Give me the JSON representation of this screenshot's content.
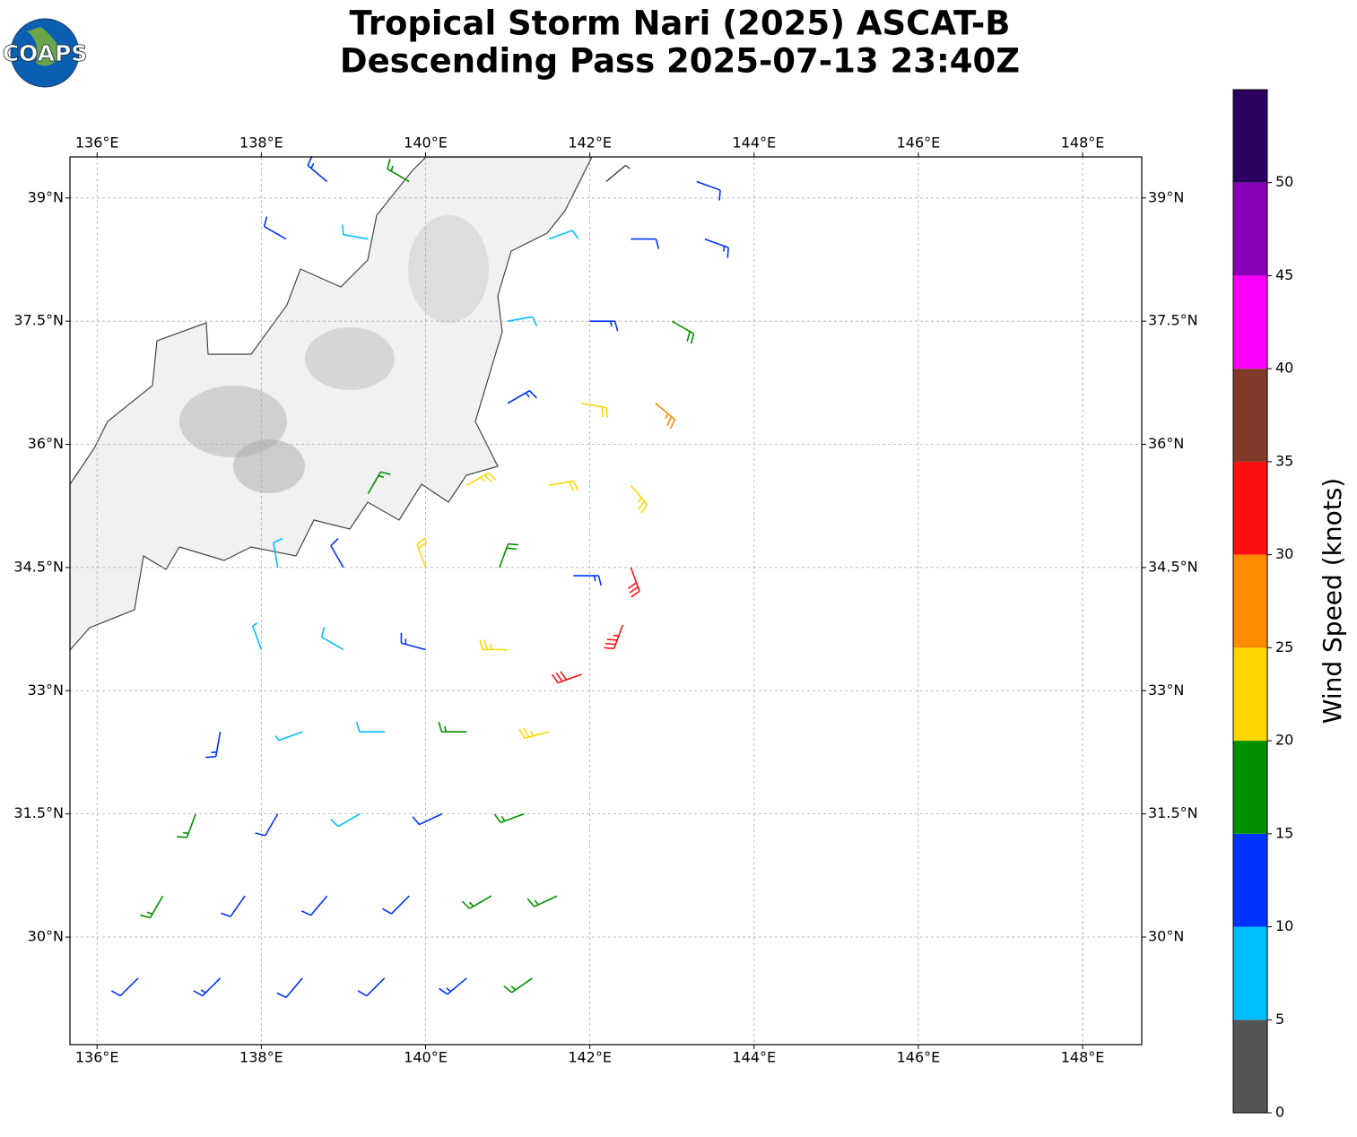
{
  "header": {
    "title": [
      "Tropical Storm Nari (2025) ASCAT-B",
      "Descending Pass 2025-07-13 23:40Z"
    ],
    "logo": "COAPS"
  },
  "chart_data": {
    "type": "barbs",
    "xlim": [
      135.67,
      148.72
    ],
    "ylim": [
      28.69,
      39.5
    ],
    "grid": true,
    "xticks": [
      {
        "value": 136,
        "label": "136°E"
      },
      {
        "value": 138,
        "label": "138°E"
      },
      {
        "value": 140,
        "label": "140°E"
      },
      {
        "value": 142,
        "label": "142°E"
      },
      {
        "value": 144,
        "label": "144°E"
      },
      {
        "value": 146,
        "label": "146°E"
      },
      {
        "value": 148,
        "label": "148°E"
      }
    ],
    "yticks": [
      {
        "value": 30,
        "label": "30°N"
      },
      {
        "value": 31.5,
        "label": "31.5°N"
      },
      {
        "value": 33,
        "label": "33°N"
      },
      {
        "value": 34.5,
        "label": "34.5°N"
      },
      {
        "value": 36,
        "label": "36°N"
      },
      {
        "value": 37.5,
        "label": "37.5°N"
      },
      {
        "value": 39,
        "label": "39°N"
      }
    ],
    "x": [
      136.5,
      137.5,
      138.5,
      139.5,
      140.5,
      141.3,
      136.8,
      137.8,
      138.8,
      139.8,
      140.8,
      141.6,
      137.2,
      138.2,
      139.2,
      140.2,
      141.2,
      137.5,
      138.5,
      139.5,
      140.5,
      141.5,
      138.0,
      139.0,
      140.0,
      141.0,
      141.9,
      142.4,
      138.2,
      139.0,
      140.0,
      140.9,
      141.8,
      142.5,
      139.3,
      140.5,
      141.5,
      142.5,
      141.0,
      141.9,
      142.8,
      141.0,
      142.0,
      143.0,
      138.3,
      139.3,
      141.5,
      142.5,
      143.4,
      138.8,
      139.8,
      142.2,
      143.3
    ],
    "y": [
      29.5,
      29.5,
      29.5,
      29.5,
      29.5,
      29.5,
      30.5,
      30.5,
      30.5,
      30.5,
      30.5,
      30.5,
      31.5,
      31.5,
      31.5,
      31.5,
      31.5,
      32.5,
      32.5,
      32.5,
      32.5,
      32.5,
      33.5,
      33.5,
      33.5,
      33.5,
      33.2,
      33.8,
      34.5,
      34.5,
      34.5,
      34.5,
      34.4,
      34.5,
      35.4,
      35.5,
      35.5,
      35.5,
      36.5,
      36.5,
      36.5,
      37.5,
      37.5,
      37.5,
      38.5,
      38.5,
      38.5,
      38.5,
      38.5,
      39.2,
      39.2,
      39.2,
      39.2
    ],
    "speed": [
      12,
      14,
      12,
      12,
      13,
      16,
      17,
      12,
      12,
      12,
      16,
      17,
      16,
      11,
      8,
      12,
      17,
      14,
      7,
      8,
      17,
      24,
      7,
      8,
      14,
      24,
      31,
      33,
      8,
      12,
      22,
      19,
      14,
      31,
      17,
      23,
      22,
      24,
      14,
      21,
      27,
      9,
      13,
      19,
      12,
      9,
      9,
      12,
      13,
      13,
      17,
      4,
      12
    ],
    "direction": [
      225,
      225,
      220,
      225,
      230,
      235,
      210,
      215,
      220,
      225,
      240,
      245,
      200,
      210,
      240,
      245,
      250,
      190,
      250,
      270,
      270,
      255,
      340,
      300,
      285,
      270,
      250,
      200,
      350,
      330,
      340,
      20,
      90,
      160,
      30,
      60,
      80,
      140,
      60,
      100,
      130,
      80,
      90,
      120,
      300,
      280,
      70,
      90,
      110,
      310,
      300,
      50,
      110
    ],
    "colorbar": {
      "label": "Wind Speed (knots)",
      "lim": [
        0,
        55
      ],
      "ticks": [
        0,
        5,
        10,
        15,
        20,
        25,
        30,
        35,
        40,
        45,
        50
      ],
      "bounds": [
        0,
        5,
        10,
        15,
        20,
        25,
        30,
        35,
        40,
        45,
        50,
        55
      ],
      "colors": [
        "#555555",
        "#00bfff",
        "#0033ff",
        "#009000",
        "#ffd700",
        "#ff8c00",
        "#ff1010",
        "#803a2a",
        "#ff00ff",
        "#8a00b8",
        "#2a0060"
      ]
    }
  }
}
